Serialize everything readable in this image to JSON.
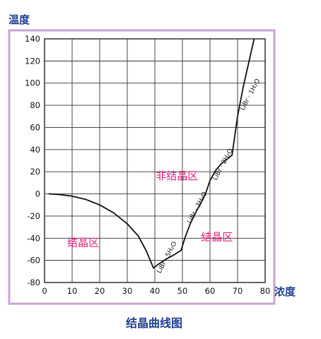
{
  "chart_data": {
    "type": "line",
    "title": "结晶曲线图",
    "xlabel": "浓度",
    "ylabel": "温度",
    "xlim": [
      0,
      80
    ],
    "ylim": [
      -80,
      140
    ],
    "x_ticks": [
      "0",
      "10",
      "20",
      "30",
      "40",
      "50",
      "60",
      "70",
      "80"
    ],
    "y_ticks": [
      "140",
      "120",
      "100",
      "80",
      "60",
      "40",
      "20",
      "0",
      "-20",
      "-40",
      "-60",
      "-80"
    ],
    "grid": true,
    "series": [
      {
        "points": [
          [
            1.5,
            0
          ],
          [
            5,
            -0.5
          ],
          [
            10,
            -2
          ],
          [
            15,
            -5
          ],
          [
            20,
            -10
          ],
          [
            25,
            -17
          ],
          [
            30,
            -27
          ],
          [
            34,
            -38
          ],
          [
            37,
            -52
          ],
          [
            39.5,
            -67
          ],
          [
            41,
            -64
          ],
          [
            44,
            -59
          ],
          [
            47,
            -55
          ],
          [
            49.5,
            -51
          ],
          [
            51,
            -39
          ],
          [
            53,
            -26
          ],
          [
            55,
            -16
          ],
          [
            57,
            -7
          ],
          [
            58.5,
            1
          ],
          [
            60,
            12
          ],
          [
            62,
            21
          ],
          [
            64,
            27
          ],
          [
            66,
            31
          ],
          [
            68,
            35
          ],
          [
            70,
            70
          ],
          [
            72,
            96
          ],
          [
            74,
            118
          ],
          [
            76,
            140
          ]
        ]
      }
    ],
    "regions": [
      {
        "label": "非结晶区",
        "x": 48,
        "y": 13
      },
      {
        "label": "结晶区",
        "x": 14,
        "y": -47
      },
      {
        "label": "结晶区",
        "x": 62.5,
        "y": -42
      }
    ],
    "annotations": [
      {
        "label": "LiBr · 5H₂O",
        "x": 42,
        "y": -72,
        "rotate": -62
      },
      {
        "label": "LiBr · 3H₂O",
        "x": 53,
        "y": -27,
        "rotate": -62
      },
      {
        "label": "LiBr · 2H₂O",
        "x": 62.3,
        "y": 12,
        "rotate": -62
      },
      {
        "label": "LiBr · 1H₂O",
        "x": 72.2,
        "y": 75,
        "rotate": -62
      }
    ]
  }
}
